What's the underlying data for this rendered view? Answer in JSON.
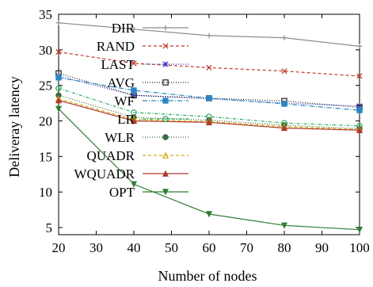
{
  "chart_data": {
    "type": "line",
    "title": "",
    "xlabel": "Number of nodes",
    "ylabel": "Deliveray latency",
    "x": [
      20,
      40,
      60,
      80,
      100
    ],
    "xlim": [
      20,
      100
    ],
    "ylim": [
      4,
      35
    ],
    "xticks": [
      "20",
      "30",
      "40",
      "50",
      "60",
      "70",
      "80",
      "90",
      "100"
    ],
    "yticks": [
      "5",
      "10",
      "15",
      "20",
      "25",
      "30",
      "35"
    ],
    "grid": false,
    "legend_position": "top-right",
    "series": [
      {
        "name": "DIR",
        "color": "#8c8c8c",
        "dash": "",
        "marker": "plus",
        "values": [
          33.8,
          32.9,
          32.0,
          31.7,
          30.5
        ]
      },
      {
        "name": "RAND",
        "color": "#c0392b",
        "dash": "4,3",
        "marker": "x",
        "values": [
          29.7,
          28.1,
          27.5,
          27.0,
          26.3
        ]
      },
      {
        "name": "LAST",
        "color": "#3b3bc9",
        "dash": "1,2",
        "marker": "star",
        "values": [
          26.3,
          23.6,
          23.1,
          22.5,
          22.1
        ]
      },
      {
        "name": "AVG",
        "color": "#222222",
        "dash": "1,2",
        "marker": "square",
        "values": [
          26.7,
          23.6,
          23.2,
          22.8,
          21.9
        ]
      },
      {
        "name": "WF",
        "color": "#2e86c1",
        "dash": "6,2,1,2",
        "marker": "fsquare",
        "values": [
          26.1,
          24.3,
          23.2,
          22.4,
          21.5
        ]
      },
      {
        "name": "LR",
        "color": "#27ae60",
        "dash": "4,2,1,2",
        "marker": "circle",
        "values": [
          24.6,
          21.2,
          20.6,
          19.7,
          19.3
        ]
      },
      {
        "name": "WLR",
        "color": "#3c6b3c",
        "dash": "1,2",
        "marker": "fcircle",
        "values": [
          23.6,
          20.5,
          20.1,
          19.4,
          18.9
        ]
      },
      {
        "name": "QUADR",
        "color": "#d4ac0d",
        "dash": "4,3",
        "marker": "triangle",
        "values": [
          23.1,
          20.2,
          19.9,
          19.2,
          18.8
        ]
      },
      {
        "name": "WQUADR",
        "color": "#b03a2e",
        "dash": "",
        "marker": "ftriangle",
        "values": [
          22.9,
          20.0,
          19.8,
          19.0,
          18.7
        ]
      },
      {
        "name": "OPT",
        "color": "#2e7d32",
        "dash": "",
        "marker": "invtriangle",
        "values": [
          21.7,
          11.1,
          6.9,
          5.3,
          4.7
        ]
      }
    ]
  }
}
